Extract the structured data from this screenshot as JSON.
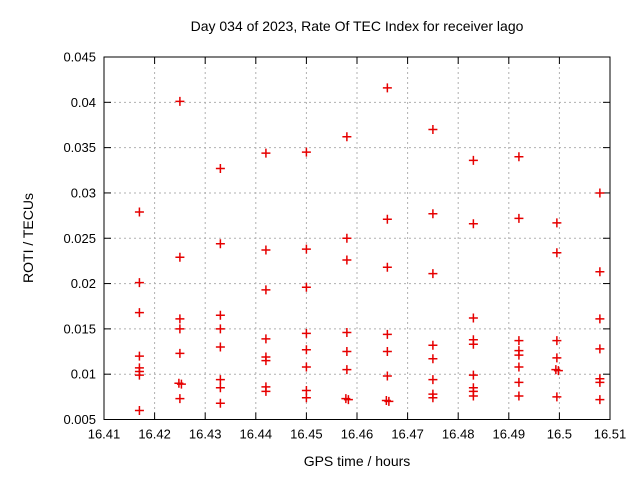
{
  "title": "Day 034 of 2023, Rate Of TEC Index for receiver lago",
  "colors": {
    "marker": "#e60000",
    "grid": "#b0b0b0",
    "axis": "#000000",
    "background": "#ffffff"
  },
  "chart_data": {
    "type": "scatter",
    "title": "Day 034 of 2023, Rate Of TEC Index for receiver lago",
    "xlabel": "GPS time / hours",
    "ylabel": "ROTI / TECUs",
    "xlim": [
      16.41,
      16.51
    ],
    "ylim": [
      0.005,
      0.045
    ],
    "xticks": [
      16.41,
      16.42,
      16.43,
      16.44,
      16.45,
      16.46,
      16.47,
      16.48,
      16.49,
      16.5,
      16.51
    ],
    "xtick_labels": [
      "16.41",
      "16.42",
      "16.43",
      "16.44",
      "16.45",
      "16.46",
      "16.47",
      "16.48",
      "16.49",
      "16.5",
      "16.51"
    ],
    "yticks": [
      0.005,
      0.01,
      0.015,
      0.02,
      0.025,
      0.03,
      0.035,
      0.04,
      0.045
    ],
    "ytick_labels": [
      "0.005",
      "0.01",
      "0.015",
      "0.02",
      "0.025",
      "0.03",
      "0.035",
      "0.04",
      "0.045"
    ],
    "grid": true,
    "grid_style": "dashed",
    "legend": "none",
    "marker": {
      "symbol": "plus",
      "color": "#e60000",
      "size": 9
    },
    "series": [
      {
        "name": "ROTI",
        "points": [
          [
            16.417,
            0.0279
          ],
          [
            16.417,
            0.0201
          ],
          [
            16.417,
            0.0168
          ],
          [
            16.417,
            0.012
          ],
          [
            16.417,
            0.0107
          ],
          [
            16.417,
            0.0103
          ],
          [
            16.417,
            0.0099
          ],
          [
            16.417,
            0.006
          ],
          [
            16.425,
            0.0401
          ],
          [
            16.425,
            0.0229
          ],
          [
            16.425,
            0.0161
          ],
          [
            16.425,
            0.015
          ],
          [
            16.425,
            0.0123
          ],
          [
            16.4248,
            0.009
          ],
          [
            16.4253,
            0.0089
          ],
          [
            16.425,
            0.0073
          ],
          [
            16.433,
            0.0327
          ],
          [
            16.433,
            0.0244
          ],
          [
            16.433,
            0.0165
          ],
          [
            16.433,
            0.015
          ],
          [
            16.433,
            0.013
          ],
          [
            16.433,
            0.0094
          ],
          [
            16.433,
            0.0085
          ],
          [
            16.433,
            0.0068
          ],
          [
            16.442,
            0.0344
          ],
          [
            16.442,
            0.0237
          ],
          [
            16.442,
            0.0193
          ],
          [
            16.442,
            0.0139
          ],
          [
            16.442,
            0.0119
          ],
          [
            16.442,
            0.0115
          ],
          [
            16.442,
            0.0086
          ],
          [
            16.442,
            0.0081
          ],
          [
            16.45,
            0.0345
          ],
          [
            16.45,
            0.0238
          ],
          [
            16.45,
            0.0196
          ],
          [
            16.45,
            0.0145
          ],
          [
            16.45,
            0.0127
          ],
          [
            16.45,
            0.0108
          ],
          [
            16.45,
            0.0082
          ],
          [
            16.45,
            0.0074
          ],
          [
            16.458,
            0.0362
          ],
          [
            16.458,
            0.025
          ],
          [
            16.458,
            0.0226
          ],
          [
            16.458,
            0.0146
          ],
          [
            16.458,
            0.0125
          ],
          [
            16.458,
            0.0105
          ],
          [
            16.4578,
            0.0073
          ],
          [
            16.4583,
            0.0072
          ],
          [
            16.466,
            0.0416
          ],
          [
            16.466,
            0.0271
          ],
          [
            16.466,
            0.0218
          ],
          [
            16.466,
            0.0144
          ],
          [
            16.466,
            0.0125
          ],
          [
            16.466,
            0.0098
          ],
          [
            16.4658,
            0.0071
          ],
          [
            16.4663,
            0.007
          ],
          [
            16.475,
            0.037
          ],
          [
            16.475,
            0.0277
          ],
          [
            16.475,
            0.0211
          ],
          [
            16.475,
            0.0132
          ],
          [
            16.475,
            0.0117
          ],
          [
            16.475,
            0.0094
          ],
          [
            16.475,
            0.0078
          ],
          [
            16.475,
            0.0074
          ],
          [
            16.483,
            0.0336
          ],
          [
            16.483,
            0.0266
          ],
          [
            16.483,
            0.0162
          ],
          [
            16.483,
            0.0138
          ],
          [
            16.483,
            0.0133
          ],
          [
            16.483,
            0.0099
          ],
          [
            16.483,
            0.0085
          ],
          [
            16.483,
            0.0081
          ],
          [
            16.483,
            0.0076
          ],
          [
            16.492,
            0.034
          ],
          [
            16.492,
            0.0272
          ],
          [
            16.492,
            0.0137
          ],
          [
            16.492,
            0.0126
          ],
          [
            16.492,
            0.0121
          ],
          [
            16.492,
            0.0108
          ],
          [
            16.492,
            0.0091
          ],
          [
            16.492,
            0.0076
          ],
          [
            16.4995,
            0.0267
          ],
          [
            16.4995,
            0.0234
          ],
          [
            16.4995,
            0.0137
          ],
          [
            16.4995,
            0.0118
          ],
          [
            16.4993,
            0.0105
          ],
          [
            16.4998,
            0.0104
          ],
          [
            16.4995,
            0.0075
          ],
          [
            16.508,
            0.03
          ],
          [
            16.508,
            0.0213
          ],
          [
            16.508,
            0.0161
          ],
          [
            16.508,
            0.0128
          ],
          [
            16.508,
            0.0095
          ],
          [
            16.508,
            0.0091
          ],
          [
            16.508,
            0.0072
          ]
        ]
      }
    ]
  }
}
